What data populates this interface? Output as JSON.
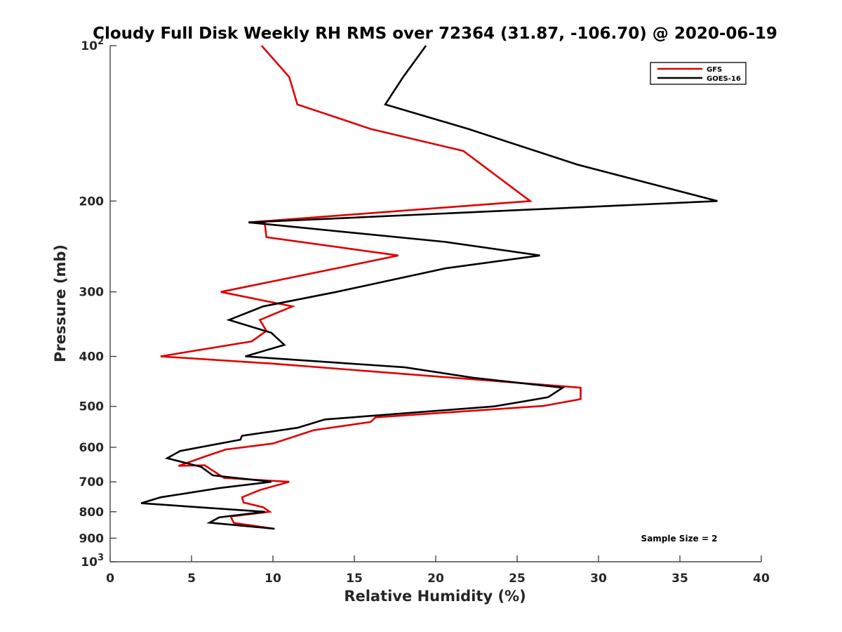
{
  "chart_data": {
    "type": "line",
    "title": "Cloudy Full Disk Weekly RH RMS over 72364 (31.87, -106.70) @ 2020-06-19",
    "xlabel": "Relative Humidity (%)",
    "ylabel": "Pressure (mb)",
    "xlim": [
      0,
      40
    ],
    "ylim": [
      100,
      1000
    ],
    "y_scale": "log",
    "y_reversed": true,
    "xticks": [
      0,
      5,
      10,
      15,
      20,
      25,
      30,
      35,
      40
    ],
    "yticks": [
      100,
      200,
      300,
      400,
      500,
      600,
      700,
      800,
      900,
      1000
    ],
    "ytick_labels": [
      {
        "base": "10",
        "exp": "2"
      },
      {
        "text": "200"
      },
      {
        "text": "300"
      },
      {
        "text": "400"
      },
      {
        "text": "500"
      },
      {
        "text": "600"
      },
      {
        "text": "700"
      },
      {
        "text": "800"
      },
      {
        "text": "900"
      },
      {
        "base": "10",
        "exp": "3"
      }
    ],
    "grid": false,
    "legend_position": "top-right",
    "annotation": "Sample Size = 2",
    "series": [
      {
        "name": "GFS",
        "color": "#dd0000",
        "points": [
          [
            9.3,
            100
          ],
          [
            11.0,
            115
          ],
          [
            11.5,
            130
          ],
          [
            16.0,
            145
          ],
          [
            21.7,
            160
          ],
          [
            25.8,
            200
          ],
          [
            8.5,
            220
          ],
          [
            9.5,
            221
          ],
          [
            9.6,
            235
          ],
          [
            17.7,
            255
          ],
          [
            13.9,
            270
          ],
          [
            6.8,
            300
          ],
          [
            11.2,
            320
          ],
          [
            9.2,
            340
          ],
          [
            9.6,
            357
          ],
          [
            8.7,
            374
          ],
          [
            3.1,
            400
          ],
          [
            9.9,
            413
          ],
          [
            28.9,
            460
          ],
          [
            28.9,
            484
          ],
          [
            26.6,
            499
          ],
          [
            16.3,
            525
          ],
          [
            16.0,
            536
          ],
          [
            12.5,
            556
          ],
          [
            10.0,
            590
          ],
          [
            7.1,
            606
          ],
          [
            5.9,
            624
          ],
          [
            4.2,
            652
          ],
          [
            5.8,
            650
          ],
          [
            7.0,
            688
          ],
          [
            11.0,
            700
          ],
          [
            9.2,
            726
          ],
          [
            8.1,
            750
          ],
          [
            8.2,
            768
          ],
          [
            9.4,
            784
          ],
          [
            9.8,
            800
          ],
          [
            7.4,
            817
          ],
          [
            7.6,
            841
          ],
          [
            10.1,
            863
          ]
        ]
      },
      {
        "name": "GOES-16",
        "color": "#000000",
        "points": [
          [
            19.4,
            100
          ],
          [
            18.0,
            115
          ],
          [
            16.9,
            130
          ],
          [
            22.0,
            145
          ],
          [
            28.7,
            170
          ],
          [
            37.3,
            200
          ],
          [
            8.5,
            220
          ],
          [
            20.6,
            240
          ],
          [
            26.4,
            255
          ],
          [
            20.6,
            270
          ],
          [
            13.9,
            300
          ],
          [
            9.4,
            320
          ],
          [
            7.3,
            340
          ],
          [
            9.9,
            360
          ],
          [
            10.7,
            380
          ],
          [
            8.3,
            400
          ],
          [
            18.1,
            420
          ],
          [
            22.3,
            440
          ],
          [
            27.8,
            460
          ],
          [
            26.9,
            480
          ],
          [
            23.6,
            500
          ],
          [
            13.2,
            530
          ],
          [
            11.5,
            550
          ],
          [
            8.1,
            570
          ],
          [
            8.0,
            580
          ],
          [
            4.3,
            610
          ],
          [
            3.5,
            630
          ],
          [
            5.6,
            655
          ],
          [
            6.3,
            680
          ],
          [
            9.9,
            700
          ],
          [
            6.7,
            720
          ],
          [
            3.1,
            750
          ],
          [
            1.9,
            770
          ],
          [
            9.5,
            800
          ],
          [
            6.7,
            820
          ],
          [
            6.1,
            840
          ],
          [
            10.1,
            863
          ]
        ]
      }
    ]
  }
}
